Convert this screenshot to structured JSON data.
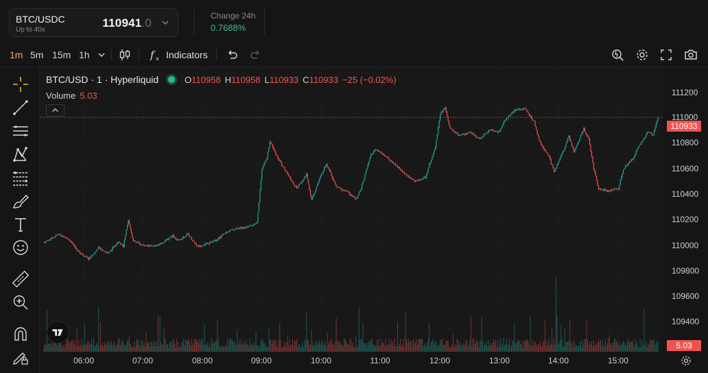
{
  "header": {
    "pair": "BTC/USDC",
    "leverage": "Up to 40x",
    "price_main": "110941",
    "price_dim": ".0",
    "change_label": "Change 24h",
    "change_value": "0.7688%"
  },
  "toolbar": {
    "timeframes": [
      {
        "label": "1m",
        "active": true
      },
      {
        "label": "5m",
        "active": false
      },
      {
        "label": "15m",
        "active": false
      },
      {
        "label": "1h",
        "active": false
      }
    ],
    "indicators_label": "Indicators",
    "icons": [
      "chevron-down-icon",
      "candles-icon",
      "fx-icon",
      "undo-icon",
      "redo-icon",
      "replay-icon",
      "gear-icon",
      "fullscreen-icon",
      "camera-icon"
    ]
  },
  "drawing_tools": [
    "crosshair-icon",
    "trendline-icon",
    "horizontal-lines-icon",
    "pattern-icon",
    "fib-icon",
    "brush-icon",
    "text-icon",
    "emoji-icon",
    "ruler-icon",
    "zoom-in-icon",
    "magnet-icon",
    "lock-pencil-icon"
  ],
  "legend": {
    "title": "BTC/USD · 1 · Hyperliquid",
    "open_label": "O",
    "open": "110958",
    "high_label": "H",
    "high": "110958",
    "low_label": "L",
    "low": "110933",
    "close_label": "C",
    "close": "110933",
    "change": "−25 (−0.02%)",
    "volume_label": "Volume",
    "volume_value": "5.03"
  },
  "price_axis": {
    "ticks": [
      "111200",
      "111000",
      "110800",
      "110600",
      "110400",
      "110200",
      "110000",
      "109800",
      "109600",
      "109400"
    ],
    "last_price_tag": "110933",
    "volume_tag": "5.03"
  },
  "time_axis": {
    "ticks": [
      "06:00",
      "07:00",
      "08:00",
      "09:00",
      "10:00",
      "11:00",
      "12:00",
      "13:00",
      "14:00",
      "15:00"
    ]
  },
  "chart_data": {
    "type": "candlestick",
    "ylim": [
      109240,
      111290
    ],
    "last_price": 110933,
    "colors": {
      "up": "#26a69a",
      "down": "#ef5350",
      "background": "#181818"
    },
    "anchors": [
      [
        "05:20",
        110030
      ],
      [
        "05:35",
        110090
      ],
      [
        "05:45",
        110050
      ],
      [
        "05:55",
        109960
      ],
      [
        "06:05",
        109910
      ],
      [
        "06:15",
        109990
      ],
      [
        "06:25",
        109950
      ],
      [
        "06:35",
        110040
      ],
      [
        "06:40",
        110000
      ],
      [
        "06:45",
        110190
      ],
      [
        "06:50",
        110040
      ],
      [
        "07:00",
        110010
      ],
      [
        "07:10",
        110000
      ],
      [
        "07:20",
        110030
      ],
      [
        "07:30",
        110080
      ],
      [
        "07:35",
        110040
      ],
      [
        "07:45",
        110090
      ],
      [
        "07:55",
        110000
      ],
      [
        "08:05",
        110020
      ],
      [
        "08:15",
        110050
      ],
      [
        "08:25",
        110110
      ],
      [
        "08:35",
        110130
      ],
      [
        "08:45",
        110140
      ],
      [
        "08:55",
        110170
      ],
      [
        "09:00",
        110560
      ],
      [
        "09:05",
        110640
      ],
      [
        "09:08",
        110760
      ],
      [
        "09:15",
        110650
      ],
      [
        "09:25",
        110530
      ],
      [
        "09:35",
        110420
      ],
      [
        "09:45",
        110520
      ],
      [
        "09:50",
        110340
      ],
      [
        "10:00",
        110520
      ],
      [
        "10:05",
        110600
      ],
      [
        "10:15",
        110430
      ],
      [
        "10:25",
        110400
      ],
      [
        "10:35",
        110340
      ],
      [
        "10:40",
        110420
      ],
      [
        "10:50",
        110660
      ],
      [
        "10:55",
        110700
      ],
      [
        "11:05",
        110650
      ],
      [
        "11:15",
        110590
      ],
      [
        "11:25",
        110520
      ],
      [
        "11:35",
        110470
      ],
      [
        "11:45",
        110500
      ],
      [
        "11:55",
        110720
      ],
      [
        "12:00",
        110960
      ],
      [
        "12:05",
        111000
      ],
      [
        "12:10",
        110850
      ],
      [
        "12:20",
        110800
      ],
      [
        "12:30",
        110820
      ],
      [
        "12:40",
        110780
      ],
      [
        "12:50",
        110840
      ],
      [
        "13:00",
        110830
      ],
      [
        "13:05",
        110910
      ],
      [
        "13:15",
        110980
      ],
      [
        "13:25",
        111000
      ],
      [
        "13:35",
        110900
      ],
      [
        "13:40",
        110760
      ],
      [
        "13:50",
        110650
      ],
      [
        "13:55",
        110540
      ],
      [
        "14:05",
        110700
      ],
      [
        "14:10",
        110800
      ],
      [
        "14:15",
        110680
      ],
      [
        "14:25",
        110850
      ],
      [
        "14:30",
        110780
      ],
      [
        "14:35",
        110560
      ],
      [
        "14:40",
        110420
      ],
      [
        "14:50",
        110400
      ],
      [
        "15:00",
        110420
      ],
      [
        "15:05",
        110560
      ],
      [
        "15:15",
        110640
      ],
      [
        "15:20",
        110720
      ],
      [
        "15:30",
        110830
      ],
      [
        "15:35",
        110800
      ],
      [
        "15:40",
        110940
      ]
    ]
  }
}
